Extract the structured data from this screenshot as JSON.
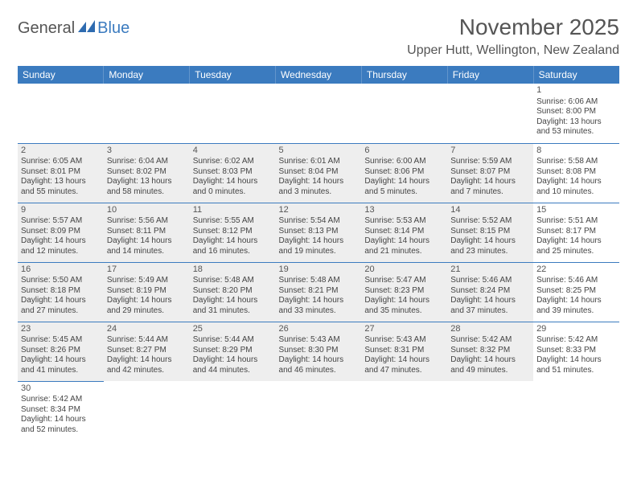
{
  "logo": {
    "text1": "General",
    "text2": "Blue"
  },
  "title": "November 2025",
  "location": "Upper Hutt, Wellington, New Zealand",
  "colors": {
    "header_bg": "#3b7bbf",
    "header_text": "#ffffff",
    "shaded_bg": "#eeeeee",
    "border": "#3b7bbf",
    "text": "#444444",
    "title_text": "#555555"
  },
  "day_headers": [
    "Sunday",
    "Monday",
    "Tuesday",
    "Wednesday",
    "Thursday",
    "Friday",
    "Saturday"
  ],
  "weeks": [
    [
      {
        "empty": true
      },
      {
        "empty": true
      },
      {
        "empty": true
      },
      {
        "empty": true
      },
      {
        "empty": true
      },
      {
        "empty": true
      },
      {
        "day": "1",
        "sunrise": "Sunrise: 6:06 AM",
        "sunset": "Sunset: 8:00 PM",
        "daylight1": "Daylight: 13 hours",
        "daylight2": "and 53 minutes.",
        "shaded": false
      }
    ],
    [
      {
        "day": "2",
        "sunrise": "Sunrise: 6:05 AM",
        "sunset": "Sunset: 8:01 PM",
        "daylight1": "Daylight: 13 hours",
        "daylight2": "and 55 minutes.",
        "shaded": true
      },
      {
        "day": "3",
        "sunrise": "Sunrise: 6:04 AM",
        "sunset": "Sunset: 8:02 PM",
        "daylight1": "Daylight: 13 hours",
        "daylight2": "and 58 minutes.",
        "shaded": true
      },
      {
        "day": "4",
        "sunrise": "Sunrise: 6:02 AM",
        "sunset": "Sunset: 8:03 PM",
        "daylight1": "Daylight: 14 hours",
        "daylight2": "and 0 minutes.",
        "shaded": true
      },
      {
        "day": "5",
        "sunrise": "Sunrise: 6:01 AM",
        "sunset": "Sunset: 8:04 PM",
        "daylight1": "Daylight: 14 hours",
        "daylight2": "and 3 minutes.",
        "shaded": true
      },
      {
        "day": "6",
        "sunrise": "Sunrise: 6:00 AM",
        "sunset": "Sunset: 8:06 PM",
        "daylight1": "Daylight: 14 hours",
        "daylight2": "and 5 minutes.",
        "shaded": true
      },
      {
        "day": "7",
        "sunrise": "Sunrise: 5:59 AM",
        "sunset": "Sunset: 8:07 PM",
        "daylight1": "Daylight: 14 hours",
        "daylight2": "and 7 minutes.",
        "shaded": true
      },
      {
        "day": "8",
        "sunrise": "Sunrise: 5:58 AM",
        "sunset": "Sunset: 8:08 PM",
        "daylight1": "Daylight: 14 hours",
        "daylight2": "and 10 minutes.",
        "shaded": false
      }
    ],
    [
      {
        "day": "9",
        "sunrise": "Sunrise: 5:57 AM",
        "sunset": "Sunset: 8:09 PM",
        "daylight1": "Daylight: 14 hours",
        "daylight2": "and 12 minutes.",
        "shaded": true
      },
      {
        "day": "10",
        "sunrise": "Sunrise: 5:56 AM",
        "sunset": "Sunset: 8:11 PM",
        "daylight1": "Daylight: 14 hours",
        "daylight2": "and 14 minutes.",
        "shaded": true
      },
      {
        "day": "11",
        "sunrise": "Sunrise: 5:55 AM",
        "sunset": "Sunset: 8:12 PM",
        "daylight1": "Daylight: 14 hours",
        "daylight2": "and 16 minutes.",
        "shaded": true
      },
      {
        "day": "12",
        "sunrise": "Sunrise: 5:54 AM",
        "sunset": "Sunset: 8:13 PM",
        "daylight1": "Daylight: 14 hours",
        "daylight2": "and 19 minutes.",
        "shaded": true
      },
      {
        "day": "13",
        "sunrise": "Sunrise: 5:53 AM",
        "sunset": "Sunset: 8:14 PM",
        "daylight1": "Daylight: 14 hours",
        "daylight2": "and 21 minutes.",
        "shaded": true
      },
      {
        "day": "14",
        "sunrise": "Sunrise: 5:52 AM",
        "sunset": "Sunset: 8:15 PM",
        "daylight1": "Daylight: 14 hours",
        "daylight2": "and 23 minutes.",
        "shaded": true
      },
      {
        "day": "15",
        "sunrise": "Sunrise: 5:51 AM",
        "sunset": "Sunset: 8:17 PM",
        "daylight1": "Daylight: 14 hours",
        "daylight2": "and 25 minutes.",
        "shaded": false
      }
    ],
    [
      {
        "day": "16",
        "sunrise": "Sunrise: 5:50 AM",
        "sunset": "Sunset: 8:18 PM",
        "daylight1": "Daylight: 14 hours",
        "daylight2": "and 27 minutes.",
        "shaded": true
      },
      {
        "day": "17",
        "sunrise": "Sunrise: 5:49 AM",
        "sunset": "Sunset: 8:19 PM",
        "daylight1": "Daylight: 14 hours",
        "daylight2": "and 29 minutes.",
        "shaded": true
      },
      {
        "day": "18",
        "sunrise": "Sunrise: 5:48 AM",
        "sunset": "Sunset: 8:20 PM",
        "daylight1": "Daylight: 14 hours",
        "daylight2": "and 31 minutes.",
        "shaded": true
      },
      {
        "day": "19",
        "sunrise": "Sunrise: 5:48 AM",
        "sunset": "Sunset: 8:21 PM",
        "daylight1": "Daylight: 14 hours",
        "daylight2": "and 33 minutes.",
        "shaded": true
      },
      {
        "day": "20",
        "sunrise": "Sunrise: 5:47 AM",
        "sunset": "Sunset: 8:23 PM",
        "daylight1": "Daylight: 14 hours",
        "daylight2": "and 35 minutes.",
        "shaded": true
      },
      {
        "day": "21",
        "sunrise": "Sunrise: 5:46 AM",
        "sunset": "Sunset: 8:24 PM",
        "daylight1": "Daylight: 14 hours",
        "daylight2": "and 37 minutes.",
        "shaded": true
      },
      {
        "day": "22",
        "sunrise": "Sunrise: 5:46 AM",
        "sunset": "Sunset: 8:25 PM",
        "daylight1": "Daylight: 14 hours",
        "daylight2": "and 39 minutes.",
        "shaded": false
      }
    ],
    [
      {
        "day": "23",
        "sunrise": "Sunrise: 5:45 AM",
        "sunset": "Sunset: 8:26 PM",
        "daylight1": "Daylight: 14 hours",
        "daylight2": "and 41 minutes.",
        "shaded": true
      },
      {
        "day": "24",
        "sunrise": "Sunrise: 5:44 AM",
        "sunset": "Sunset: 8:27 PM",
        "daylight1": "Daylight: 14 hours",
        "daylight2": "and 42 minutes.",
        "shaded": true
      },
      {
        "day": "25",
        "sunrise": "Sunrise: 5:44 AM",
        "sunset": "Sunset: 8:29 PM",
        "daylight1": "Daylight: 14 hours",
        "daylight2": "and 44 minutes.",
        "shaded": true
      },
      {
        "day": "26",
        "sunrise": "Sunrise: 5:43 AM",
        "sunset": "Sunset: 8:30 PM",
        "daylight1": "Daylight: 14 hours",
        "daylight2": "and 46 minutes.",
        "shaded": true
      },
      {
        "day": "27",
        "sunrise": "Sunrise: 5:43 AM",
        "sunset": "Sunset: 8:31 PM",
        "daylight1": "Daylight: 14 hours",
        "daylight2": "and 47 minutes.",
        "shaded": true
      },
      {
        "day": "28",
        "sunrise": "Sunrise: 5:42 AM",
        "sunset": "Sunset: 8:32 PM",
        "daylight1": "Daylight: 14 hours",
        "daylight2": "and 49 minutes.",
        "shaded": true
      },
      {
        "day": "29",
        "sunrise": "Sunrise: 5:42 AM",
        "sunset": "Sunset: 8:33 PM",
        "daylight1": "Daylight: 14 hours",
        "daylight2": "and 51 minutes.",
        "shaded": false
      }
    ],
    [
      {
        "day": "30",
        "sunrise": "Sunrise: 5:42 AM",
        "sunset": "Sunset: 8:34 PM",
        "daylight1": "Daylight: 14 hours",
        "daylight2": "and 52 minutes.",
        "shaded": false
      },
      {
        "empty": true
      },
      {
        "empty": true
      },
      {
        "empty": true
      },
      {
        "empty": true
      },
      {
        "empty": true
      },
      {
        "empty": true
      }
    ]
  ]
}
